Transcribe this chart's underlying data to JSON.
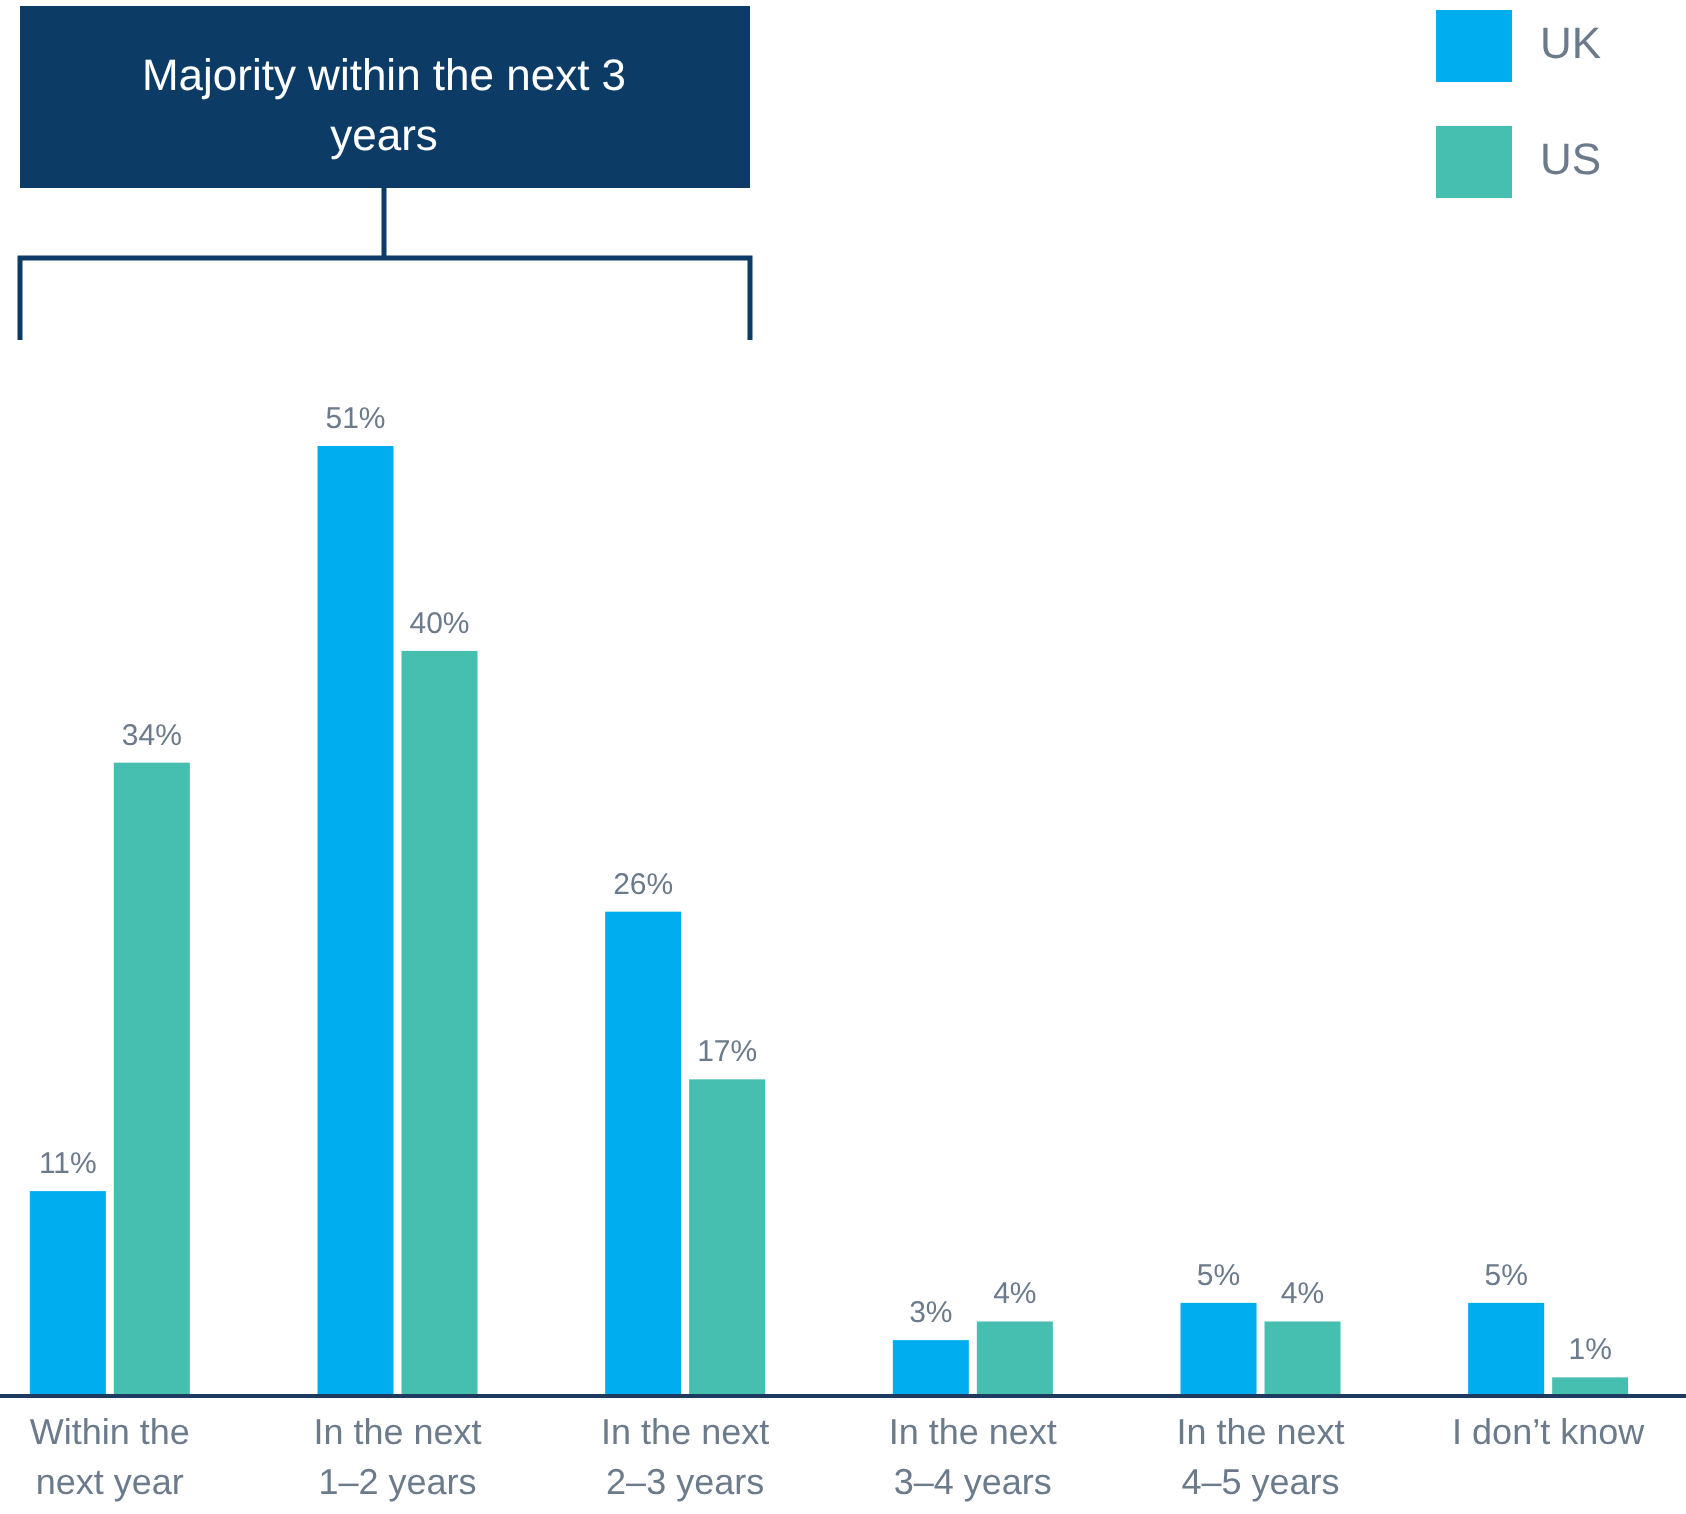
{
  "chart_data": {
    "type": "bar",
    "categories": [
      "Within the next year",
      "In the next 1–2 years",
      "In the next 2–3 years",
      "In the next 3–4 years",
      "In the next 4–5 years",
      "I don’t know"
    ],
    "series": [
      {
        "name": "UK",
        "color": "#00aeef",
        "values": [
          11,
          51,
          26,
          3,
          5,
          5
        ],
        "value_labels": [
          "11%",
          "51%",
          "26%",
          "3%",
          "5%",
          "5%"
        ]
      },
      {
        "name": "US",
        "color": "#46bfb0",
        "values": [
          34,
          40,
          17,
          4,
          4,
          1
        ],
        "value_labels": [
          "34%",
          "40%",
          "17%",
          "4%",
          "4%",
          "1%"
        ]
      }
    ],
    "legend": "top right",
    "annotations": [
      "Majority within the next 3 years"
    ]
  }
}
